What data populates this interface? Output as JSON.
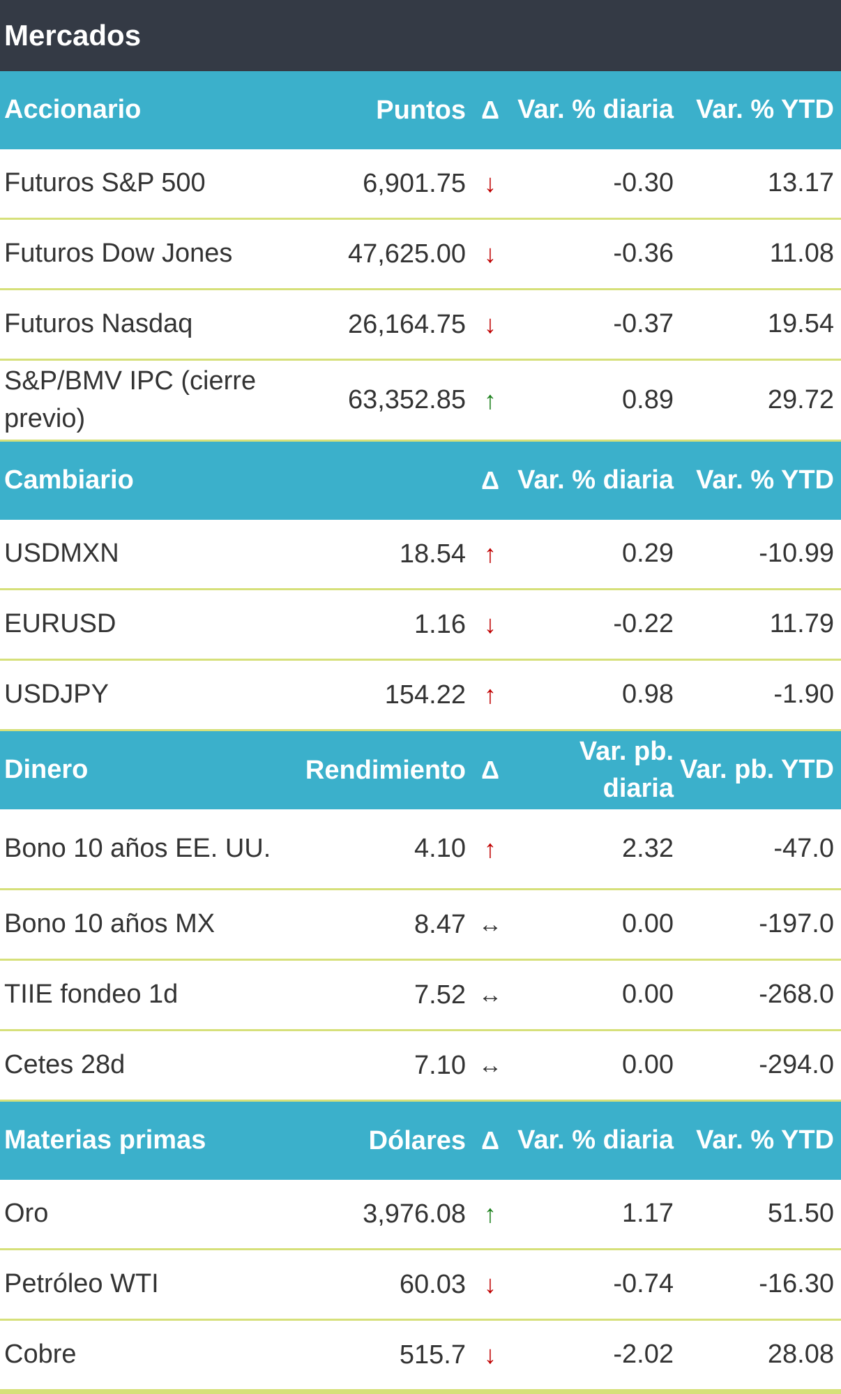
{
  "title": "Mercados",
  "colors": {
    "header_bg": "#3bb0cb",
    "title_bg": "#343a45",
    "divider": "#d6e07a",
    "down": "#c00000",
    "up_green": "#1a7f1a"
  },
  "sections": [
    {
      "header": {
        "name": "Accionario",
        "value": "Puntos",
        "delta": "Δ",
        "var": "Var. % diaria",
        "ytd": "Var. % YTD"
      },
      "rows": [
        {
          "name": "Futuros S&P 500",
          "value": "6,901.75",
          "arrow": "↓",
          "arrow_type": "down",
          "var": "-0.30",
          "ytd": "13.17"
        },
        {
          "name": "Futuros Dow Jones",
          "value": "47,625.00",
          "arrow": "↓",
          "arrow_type": "down",
          "var": "-0.36",
          "ytd": "11.08"
        },
        {
          "name": "Futuros Nasdaq",
          "value": "26,164.75",
          "arrow": "↓",
          "arrow_type": "down",
          "var": "-0.37",
          "ytd": "19.54"
        },
        {
          "name": "S&P/BMV IPC (cierre previo)",
          "value": "63,352.85",
          "arrow": "↑",
          "arrow_type": "up-green",
          "var": "0.89",
          "ytd": "29.72"
        }
      ]
    },
    {
      "header": {
        "name": "Cambiario",
        "value": "",
        "delta": "Δ",
        "var": "Var. % diaria",
        "ytd": "Var. % YTD"
      },
      "rows": [
        {
          "name": "USDMXN",
          "value": "18.54",
          "arrow": "↑",
          "arrow_type": "up-red",
          "var": "0.29",
          "ytd": "-10.99"
        },
        {
          "name": "EURUSD",
          "value": "1.16",
          "arrow": "↓",
          "arrow_type": "down",
          "var": "-0.22",
          "ytd": "11.79"
        },
        {
          "name": "USDJPY",
          "value": "154.22",
          "arrow": "↑",
          "arrow_type": "up-red",
          "var": "0.98",
          "ytd": "-1.90"
        }
      ]
    },
    {
      "header": {
        "name": "Dinero",
        "value": "Rendimiento",
        "delta": "Δ",
        "var": "Var. pb. diaria",
        "ytd": "Var. pb. YTD"
      },
      "rows": [
        {
          "name": "Bono 10 años EE. UU.",
          "value": "4.10",
          "arrow": "↑",
          "arrow_type": "up-red",
          "var": "2.32",
          "ytd": "-47.0"
        },
        {
          "name": "Bono 10 años MX",
          "value": "8.47",
          "arrow": "↔",
          "arrow_type": "flat",
          "var": "0.00",
          "ytd": "-197.0"
        },
        {
          "name": "TIIE fondeo 1d",
          "value": "7.52",
          "arrow": "↔",
          "arrow_type": "flat",
          "var": "0.00",
          "ytd": "-268.0"
        },
        {
          "name": "Cetes 28d",
          "value": "7.10",
          "arrow": "↔",
          "arrow_type": "flat",
          "var": "0.00",
          "ytd": "-294.0"
        }
      ]
    },
    {
      "header": {
        "name": "Materias primas",
        "value": "Dólares",
        "delta": "Δ",
        "var": "Var. % diaria",
        "ytd": "Var. % YTD"
      },
      "rows": [
        {
          "name": "Oro",
          "value": "3,976.08",
          "arrow": "↑",
          "arrow_type": "up-green",
          "var": "1.17",
          "ytd": "51.50"
        },
        {
          "name": "Petróleo WTI",
          "value": "60.03",
          "arrow": "↓",
          "arrow_type": "down",
          "var": "-0.74",
          "ytd": "-16.30"
        },
        {
          "name": "Cobre",
          "value": "515.7",
          "arrow": "↓",
          "arrow_type": "down",
          "var": "-2.02",
          "ytd": "28.08"
        }
      ]
    }
  ]
}
